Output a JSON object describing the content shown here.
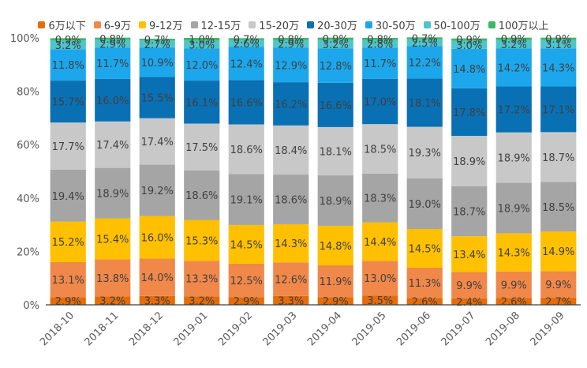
{
  "chart_data": {
    "type": "bar",
    "stacked": true,
    "percent": true,
    "title": "",
    "xlabel": "",
    "ylabel": "",
    "ylim": [
      0,
      100
    ],
    "yticks": [
      "0%",
      "20%",
      "40%",
      "60%",
      "80%",
      "100%"
    ],
    "grid": false,
    "legend_position": "top",
    "categories": [
      "2018-10",
      "2018-11",
      "2018-12",
      "2019-01",
      "2019-02",
      "2019-03",
      "2019-04",
      "2019-05",
      "2019-06",
      "2019-07",
      "2019-08",
      "2019-09"
    ],
    "series": [
      {
        "name": "6万以下",
        "color": "#E46C0A",
        "values": [
          2.9,
          3.2,
          3.3,
          3.2,
          2.9,
          3.3,
          2.9,
          3.5,
          2.6,
          2.4,
          2.6,
          2.7
        ]
      },
      {
        "name": "6-9万",
        "color": "#F0884A",
        "values": [
          13.1,
          13.8,
          14.0,
          13.3,
          12.5,
          12.6,
          11.9,
          13.0,
          11.3,
          9.9,
          9.9,
          9.9
        ]
      },
      {
        "name": "9-12万",
        "color": "#FFC000",
        "values": [
          15.2,
          15.4,
          16.0,
          15.3,
          14.5,
          14.3,
          14.8,
          14.4,
          14.5,
          13.4,
          14.3,
          14.9
        ]
      },
      {
        "name": "12-15万",
        "color": "#A5A5A5",
        "values": [
          19.4,
          18.9,
          19.2,
          18.6,
          19.1,
          18.6,
          18.9,
          18.3,
          19.0,
          18.7,
          18.9,
          18.5
        ]
      },
      {
        "name": "15-20万",
        "color": "#C8C8C8",
        "values": [
          17.7,
          17.4,
          17.4,
          17.5,
          18.6,
          18.4,
          18.1,
          18.5,
          19.3,
          18.9,
          18.9,
          18.7
        ]
      },
      {
        "name": "20-30万",
        "color": "#0A70B4",
        "values": [
          15.7,
          16.0,
          15.5,
          16.1,
          16.6,
          16.2,
          16.6,
          17.0,
          18.1,
          17.8,
          17.2,
          17.1
        ]
      },
      {
        "name": "30-50万",
        "color": "#1CA7EC",
        "values": [
          11.8,
          11.7,
          10.9,
          12.0,
          12.4,
          12.9,
          12.8,
          11.7,
          12.2,
          14.8,
          14.2,
          14.3
        ]
      },
      {
        "name": "50-100万",
        "color": "#4DC5CC",
        "values": [
          3.2,
          2.9,
          2.7,
          3.0,
          2.6,
          2.9,
          3.2,
          2.8,
          2.5,
          3.0,
          3.2,
          3.1
        ]
      },
      {
        "name": "100万以上",
        "color": "#3CB86A",
        "values": [
          0.9,
          0.8,
          0.7,
          1.0,
          0.7,
          0.8,
          0.9,
          0.8,
          0.7,
          0.9,
          0.9,
          0.9
        ]
      }
    ],
    "label_format": "{v}%"
  }
}
